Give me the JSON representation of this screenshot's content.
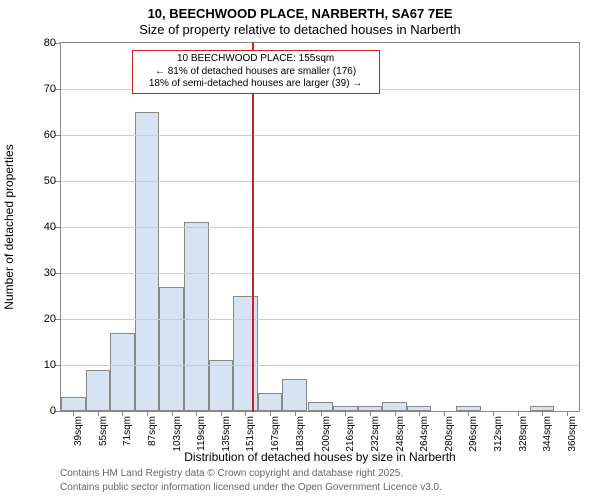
{
  "chart": {
    "type": "histogram",
    "title_line1": "10, BEECHWOOD PLACE, NARBERTH, SA67 7EE",
    "title_line2": "Size of property relative to detached houses in Narberth",
    "ylabel": "Number of detached properties",
    "xlabel": "Distribution of detached houses by size in Narberth",
    "footer1": "Contains HM Land Registry data © Crown copyright and database right 2025.",
    "footer2": "Contains public sector information licensed under the Open Government Licence v3.0.",
    "background_color": "#ffffff",
    "plot_border_color": "#888888",
    "grid_color": "#cccccc",
    "bar_fill": "#d6e3f3",
    "bar_stroke": "#888888",
    "marker_line_color": "#cc2222",
    "annotation_border": "#cc2222",
    "title_fontsize": 13,
    "label_fontsize": 12,
    "tick_fontsize": 11,
    "xtick_fontsize": 10,
    "footer_fontsize": 10,
    "annotation_fontsize": 10,
    "ylim": [
      0,
      80
    ],
    "ytick_step": 10,
    "yticks": [
      0,
      10,
      20,
      30,
      40,
      50,
      60,
      70,
      80
    ],
    "xlim": [
      31,
      368
    ],
    "xticks": [
      39,
      55,
      71,
      87,
      103,
      119,
      135,
      151,
      167,
      183,
      200,
      216,
      232,
      248,
      264,
      280,
      296,
      312,
      328,
      344,
      360
    ],
    "xtick_labels": [
      "39sqm",
      "55sqm",
      "71sqm",
      "87sqm",
      "103sqm",
      "119sqm",
      "135sqm",
      "151sqm",
      "167sqm",
      "183sqm",
      "200sqm",
      "216sqm",
      "232sqm",
      "248sqm",
      "264sqm",
      "280sqm",
      "296sqm",
      "312sqm",
      "328sqm",
      "344sqm",
      "360sqm"
    ],
    "bars": [
      {
        "x": 39,
        "w": 16,
        "h": 3
      },
      {
        "x": 55,
        "w": 16,
        "h": 9
      },
      {
        "x": 71,
        "w": 16,
        "h": 17
      },
      {
        "x": 87,
        "w": 16,
        "h": 65
      },
      {
        "x": 103,
        "w": 16,
        "h": 27
      },
      {
        "x": 119,
        "w": 16,
        "h": 41
      },
      {
        "x": 135,
        "w": 16,
        "h": 11
      },
      {
        "x": 151,
        "w": 16,
        "h": 25
      },
      {
        "x": 167,
        "w": 16,
        "h": 4
      },
      {
        "x": 183,
        "w": 16,
        "h": 7
      },
      {
        "x": 200,
        "w": 16,
        "h": 2
      },
      {
        "x": 216,
        "w": 16,
        "h": 1
      },
      {
        "x": 232,
        "w": 16,
        "h": 1
      },
      {
        "x": 248,
        "w": 16,
        "h": 2
      },
      {
        "x": 264,
        "w": 16,
        "h": 1
      },
      {
        "x": 296,
        "w": 16,
        "h": 1
      },
      {
        "x": 344,
        "w": 16,
        "h": 1
      }
    ],
    "marker_x": 155,
    "annotation": {
      "line1": "10 BEECHWOOD PLACE: 155sqm",
      "line2": "← 81% of detached houses are smaller (176)",
      "line3": "18% of semi-detached houses are larger (39) →"
    }
  }
}
